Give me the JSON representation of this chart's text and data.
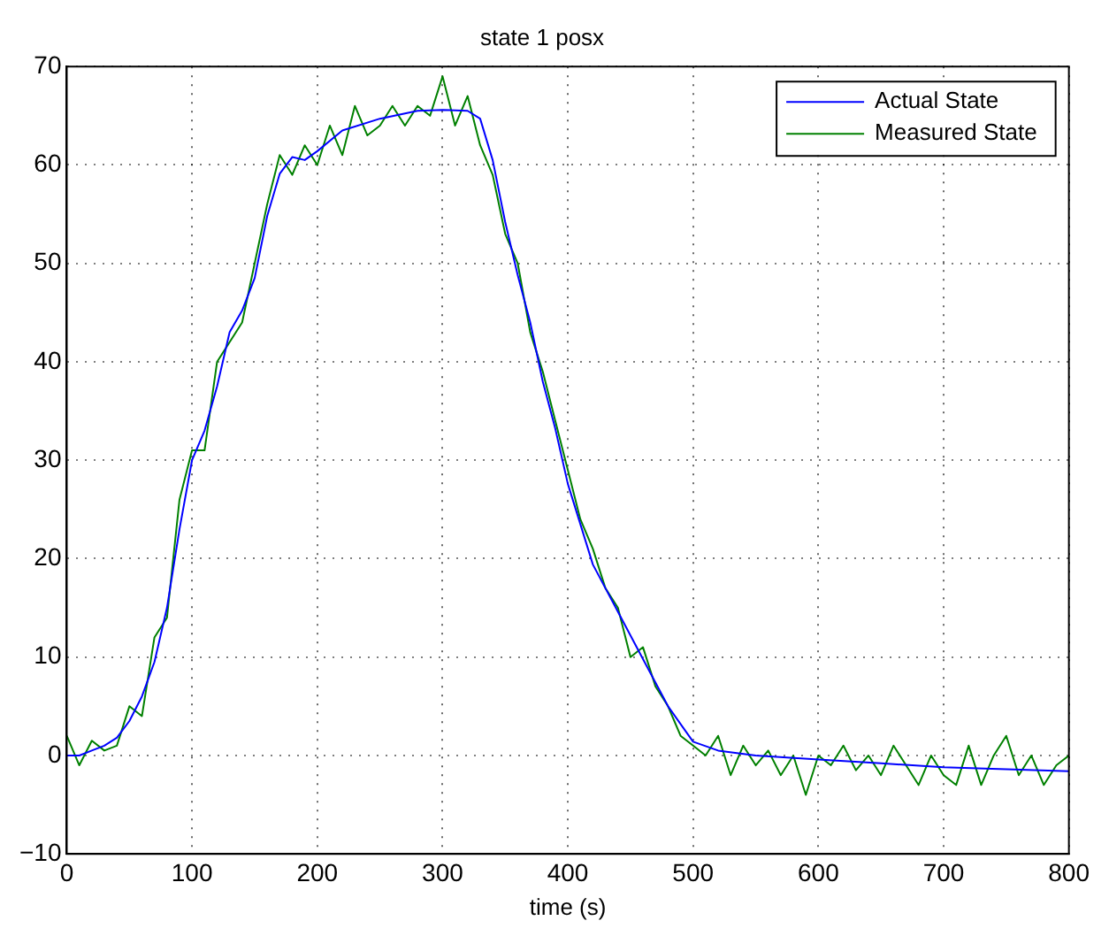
{
  "chart_data": {
    "type": "line",
    "title": "state 1 posx",
    "xlabel": "time (s)",
    "xlim": [
      0,
      800
    ],
    "xticks": [
      0,
      100,
      200,
      300,
      400,
      500,
      600,
      700,
      800
    ],
    "ylim": [
      -10,
      70
    ],
    "yticks": [
      -10,
      0,
      10,
      20,
      30,
      40,
      50,
      60,
      70
    ],
    "grid": true,
    "legend": "top right",
    "line_style": "solid",
    "marker": "none",
    "series": [
      {
        "name": "Actual State",
        "color": "#0000ff",
        "x": [
          0,
          10,
          20,
          30,
          40,
          50,
          60,
          70,
          80,
          90,
          100,
          110,
          120,
          130,
          140,
          150,
          160,
          170,
          180,
          190,
          200,
          220,
          250,
          280,
          300,
          320,
          330,
          340,
          350,
          360,
          370,
          380,
          390,
          400,
          420,
          440,
          460,
          480,
          500,
          520,
          550,
          600,
          650,
          700,
          750,
          800
        ],
        "values": [
          0,
          0,
          0.5,
          1,
          1.8,
          3.5,
          6,
          9.5,
          15,
          23,
          30,
          33,
          37.5,
          43,
          45.2,
          48.5,
          54.8,
          59.1,
          60.8,
          60.5,
          61.4,
          63.5,
          64.7,
          65.5,
          65.6,
          65.5,
          64.7,
          60.5,
          54.2,
          48.8,
          44,
          38,
          33.2,
          27.6,
          19.4,
          14.6,
          9.8,
          5,
          1.4,
          0.5,
          0,
          -0.4,
          -0.8,
          -1.2,
          -1.4,
          -1.6
        ]
      },
      {
        "name": "Measured State",
        "color": "#008000",
        "x": [
          0,
          10,
          20,
          30,
          40,
          50,
          60,
          70,
          80,
          90,
          100,
          110,
          120,
          130,
          140,
          150,
          160,
          170,
          180,
          190,
          200,
          210,
          220,
          230,
          240,
          250,
          260,
          270,
          280,
          290,
          300,
          310,
          320,
          330,
          340,
          350,
          360,
          370,
          380,
          390,
          400,
          410,
          420,
          430,
          440,
          450,
          460,
          470,
          480,
          490,
          500,
          510,
          520,
          530,
          540,
          550,
          560,
          570,
          580,
          590,
          600,
          610,
          620,
          630,
          640,
          650,
          660,
          670,
          680,
          690,
          700,
          710,
          720,
          730,
          740,
          750,
          760,
          770,
          780,
          790,
          800
        ],
        "values": [
          2,
          -1,
          1.5,
          0.5,
          1,
          5,
          4,
          12,
          14,
          26,
          31,
          31,
          40,
          42,
          44,
          50,
          56,
          61,
          59,
          62,
          60,
          64,
          61,
          66,
          63,
          64,
          66,
          64,
          66,
          65,
          69,
          64,
          67,
          62,
          59,
          53,
          50,
          43,
          39,
          34,
          29,
          24,
          21,
          17,
          15,
          10,
          11,
          7,
          5,
          2,
          1,
          0,
          2,
          -2,
          1,
          -1,
          0.5,
          -2,
          0,
          -4,
          0,
          -1,
          1,
          -1.5,
          0,
          -2,
          1,
          -1,
          -3,
          0,
          -2,
          -3,
          1,
          -3,
          0,
          2,
          -2,
          0,
          -3,
          -1,
          0
        ]
      }
    ]
  }
}
